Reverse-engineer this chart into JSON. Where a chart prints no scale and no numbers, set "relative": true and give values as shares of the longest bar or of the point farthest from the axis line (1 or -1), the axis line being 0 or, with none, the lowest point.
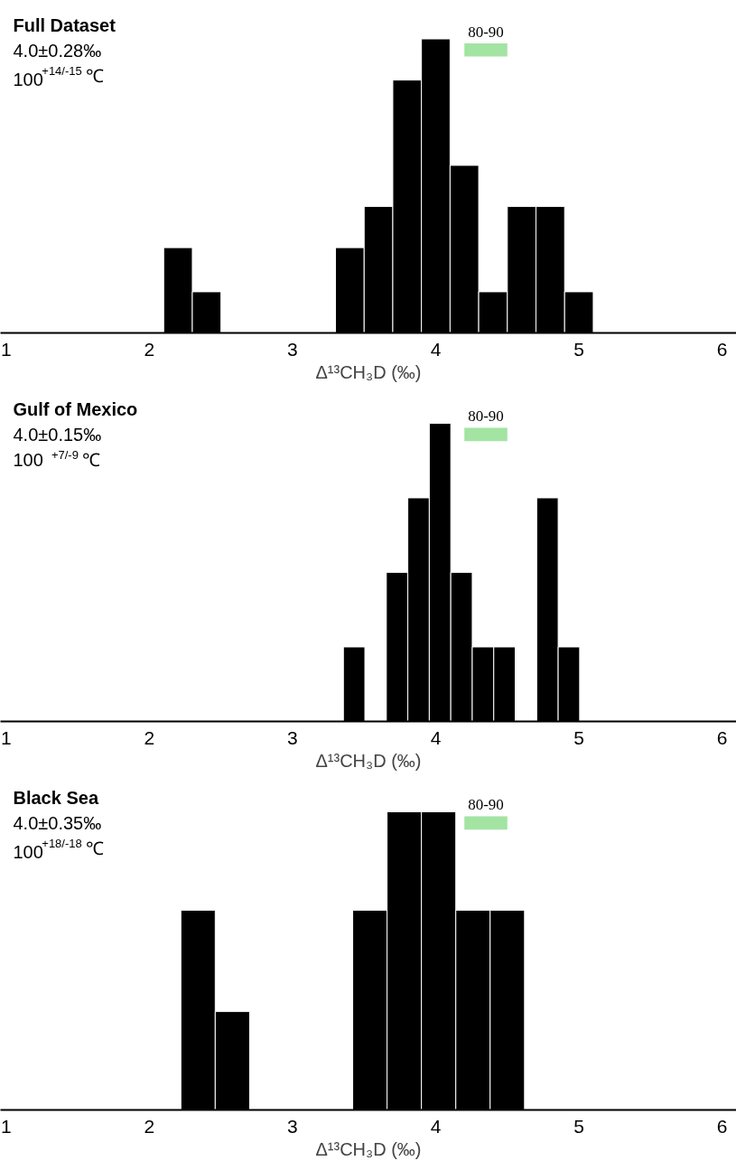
{
  "chart_data": [
    {
      "type": "bar",
      "title": "Full Dataset",
      "annotations": [
        "4.0±0.28‰",
        "100$^{+14/-15}$ ℃"
      ],
      "xlabel": "Δ¹³CH₃D (‰)",
      "relative": true,
      "color": "#000000",
      "x": [
        2.2,
        2.4,
        3.4,
        3.6,
        3.8,
        4.0,
        4.2,
        4.4,
        4.6,
        4.8,
        5.0
      ],
      "values": [
        0.29,
        0.14,
        0.29,
        0.43,
        0.86,
        1,
        0.57,
        0.14,
        0.43,
        0.43,
        0.14
      ],
      "xlim": [
        0.96,
        6.1
      ],
      "xticks": [
        1,
        2,
        3,
        4,
        5,
        6
      ],
      "tick_labels": "x",
      "bands": [
        {
          "axis": "x",
          "from": 4.2,
          "to": 4.5,
          "label": "80-90",
          "color": "#a3e4a3"
        }
      ]
    },
    {
      "type": "bar",
      "title": "Gulf of Mexico",
      "annotations": [
        "4.0±0.15‰",
        "100 $^{+7/-9}$ ℃"
      ],
      "xlabel": "Δ¹³CH₃D (‰)",
      "relative": true,
      "color": "#000000",
      "x": [
        3.43,
        3.73,
        3.88,
        4.03,
        4.18,
        4.33,
        4.48,
        4.78,
        4.93
      ],
      "values": [
        0.25,
        0.5,
        0.75,
        1,
        0.5,
        0.25,
        0.25,
        0.75,
        0.25
      ],
      "xlim": [
        0.96,
        6.1
      ],
      "xticks": [
        1,
        2,
        3,
        4,
        5,
        6
      ],
      "tick_labels": "x",
      "bands": [
        {
          "axis": "x",
          "from": 4.2,
          "to": 4.5,
          "label": "80-90",
          "color": "#a3e4a3"
        }
      ]
    },
    {
      "type": "bar",
      "title": "Black Sea",
      "annotations": [
        "4.0±0.35‰",
        "100$^{+18/-18}$ ℃"
      ],
      "xlabel": "Δ¹³CH₃D (‰)",
      "relative": true,
      "color": "#000000",
      "x": [
        2.34,
        2.58,
        3.54,
        3.78,
        4.02,
        4.26,
        4.5
      ],
      "values": [
        0.67,
        0.33,
        0.67,
        1,
        1,
        0.67,
        0.67
      ],
      "xlim": [
        0.96,
        6.1
      ],
      "xticks": [
        1,
        2,
        3,
        4,
        5,
        6
      ],
      "tick_labels": "x",
      "bands": [
        {
          "axis": "x",
          "from": 4.2,
          "to": 4.5,
          "label": "80-90",
          "color": "#a3e4a3"
        }
      ]
    }
  ]
}
